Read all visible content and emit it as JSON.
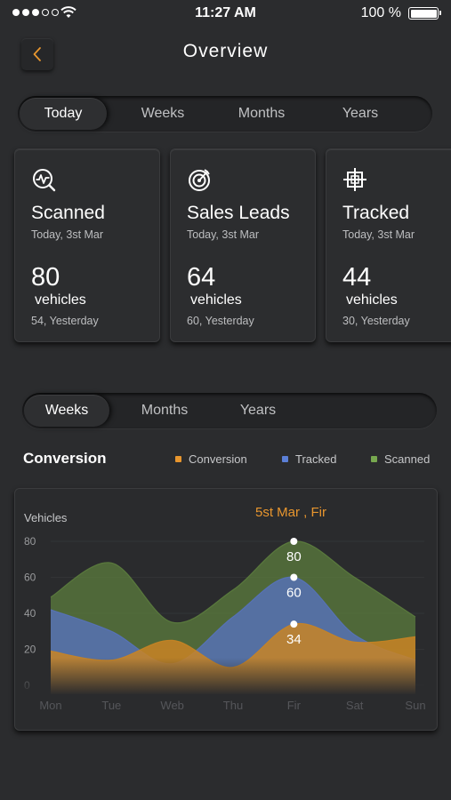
{
  "status_bar": {
    "time": "11:27 AM",
    "battery": "100 %",
    "signal_bars": 3,
    "signal_total": 5
  },
  "header": {
    "title": "Overview",
    "back_icon": "chevron-left-icon",
    "back_color": "#e8962e"
  },
  "period_tabs": [
    "Today",
    "Weeks",
    "Months",
    "Years"
  ],
  "period_active": "Today",
  "cards": [
    {
      "icon": "scan-search-icon",
      "title": "Scanned",
      "date": "Today, 3st Mar",
      "value": "80",
      "unit": "vehicles",
      "yesterday": "54, Yesterday"
    },
    {
      "icon": "target-icon",
      "title": "Sales Leads",
      "date": "Today, 3st Mar",
      "value": "64",
      "unit": "vehicles",
      "yesterday": "60, Yesterday"
    },
    {
      "icon": "crosshair-icon",
      "title": "Tracked",
      "date": "Today, 3st Mar",
      "value": "44",
      "unit": "vehicles",
      "yesterday": "30, Yesterday"
    }
  ],
  "chart_tabs": [
    "Weeks",
    "Months",
    "Years"
  ],
  "chart_active": "Weeks",
  "conversion": {
    "title": "Conversion",
    "legend": [
      {
        "label": "Conversion",
        "color": "#e8962e"
      },
      {
        "label": "Tracked",
        "color": "#5b7fd6"
      },
      {
        "label": "Scanned",
        "color": "#77a84f"
      }
    ]
  },
  "chart_data": {
    "type": "area",
    "ylabel": "Vehicles",
    "annotation": "5st Mar , Fir",
    "annotation_color": "#e8962e",
    "categories": [
      "Mon",
      "Tue",
      "Web",
      "Thu",
      "Fir",
      "Sat",
      "Sun"
    ],
    "yticks": [
      0,
      20,
      40,
      60,
      80
    ],
    "ylim": [
      0,
      80
    ],
    "highlight_index": 4,
    "series": [
      {
        "name": "Scanned",
        "color": "#5c7d3e",
        "values": [
          49,
          68,
          35,
          53,
          80,
          60,
          38
        ]
      },
      {
        "name": "Tracked",
        "color": "#5672bd",
        "values": [
          42,
          30,
          12,
          38,
          60,
          28,
          14
        ]
      },
      {
        "name": "Conversion",
        "color": "#c98424",
        "values": [
          19,
          14,
          25,
          10,
          34,
          24,
          27
        ]
      }
    ],
    "point_labels": [
      "80",
      "60",
      "34"
    ]
  }
}
